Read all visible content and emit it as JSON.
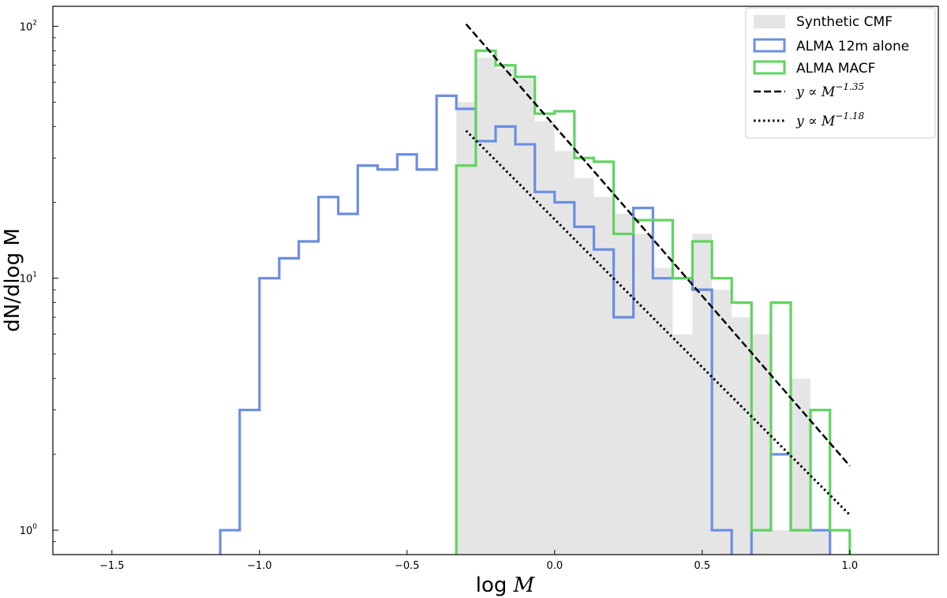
{
  "chart_data": {
    "type": "histogram",
    "title": "",
    "xlabel": "log",
    "xlabel_var": "M",
    "ylabel": "dN/dlog M",
    "xlim": [
      -1.7,
      1.3
    ],
    "ylim": [
      0.8,
      120
    ],
    "yscale": "log",
    "grid": false,
    "legend_position": "top-right",
    "x_ticks": [
      {
        "value": -1.5,
        "label": "−1.5"
      },
      {
        "value": -1.0,
        "label": "−1.0"
      },
      {
        "value": -0.5,
        "label": "−0.5"
      },
      {
        "value": 0.0,
        "label": "0.0"
      },
      {
        "value": 0.5,
        "label": "0.5"
      },
      {
        "value": 1.0,
        "label": "1.0"
      }
    ],
    "y_ticks": [
      {
        "value": 1,
        "base": "10",
        "exp": "0"
      },
      {
        "value": 10,
        "base": "10",
        "exp": "1"
      },
      {
        "value": 100,
        "base": "10",
        "exp": "2"
      }
    ],
    "series": [
      {
        "name": "Synthetic CMF",
        "kind": "filled-histogram",
        "color": "#e5e5e5",
        "edges": [
          -0.333,
          -0.267,
          -0.2,
          -0.133,
          -0.067,
          0.0,
          0.067,
          0.133,
          0.2,
          0.267,
          0.333,
          0.4,
          0.467,
          0.533,
          0.6,
          0.667,
          0.733,
          0.8,
          0.867,
          0.933
        ],
        "values": [
          50,
          75,
          68,
          62,
          42,
          32,
          25,
          21,
          18,
          15,
          11,
          6,
          15,
          9,
          7,
          6,
          1,
          4,
          1
        ]
      },
      {
        "name": "ALMA 12m alone",
        "kind": "step-histogram",
        "color": "#6b8ee2",
        "edges": [
          -1.133,
          -1.067,
          -1.0,
          -0.933,
          -0.867,
          -0.8,
          -0.733,
          -0.667,
          -0.6,
          -0.533,
          -0.467,
          -0.4,
          -0.333,
          -0.267,
          -0.2,
          -0.133,
          -0.067,
          0.0,
          0.067,
          0.133,
          0.2,
          0.267,
          0.333,
          0.4,
          0.467,
          0.533,
          0.6,
          0.667,
          0.733,
          0.8,
          0.867,
          0.933
        ],
        "values": [
          1,
          3,
          10,
          12,
          14,
          21,
          18,
          28,
          27,
          31,
          27,
          53,
          47,
          35,
          40,
          34,
          22,
          20,
          16,
          13,
          7,
          19,
          10,
          10,
          9,
          1,
          0,
          1,
          2,
          1,
          1
        ]
      },
      {
        "name": "ALMA MACF",
        "kind": "step-histogram",
        "color": "#5fd45f",
        "edges": [
          -0.333,
          -0.267,
          -0.2,
          -0.133,
          -0.067,
          0.0,
          0.067,
          0.133,
          0.2,
          0.267,
          0.333,
          0.4,
          0.467,
          0.533,
          0.6,
          0.667,
          0.733,
          0.8,
          0.867,
          0.933,
          1.0
        ],
        "values": [
          28,
          80,
          70,
          63,
          45,
          46,
          30,
          29,
          15,
          17,
          17,
          10,
          14,
          10,
          8,
          1,
          8,
          1,
          3,
          1
        ]
      },
      {
        "name": "y ∝ M−1.35",
        "legend_prefix": "y ∝ M",
        "legend_exp": "−1.35",
        "kind": "line",
        "style": "dashed",
        "color": "#000000",
        "x": [
          -0.3,
          1.0
        ],
        "y": [
          102,
          1.8
        ]
      },
      {
        "name": "y ∝ M−1.18",
        "legend_prefix": "y ∝ M",
        "legend_exp": "−1.18",
        "kind": "line",
        "style": "dotted",
        "color": "#000000",
        "x": [
          -0.3,
          1.0
        ],
        "y": [
          38.5,
          1.15
        ]
      }
    ]
  }
}
